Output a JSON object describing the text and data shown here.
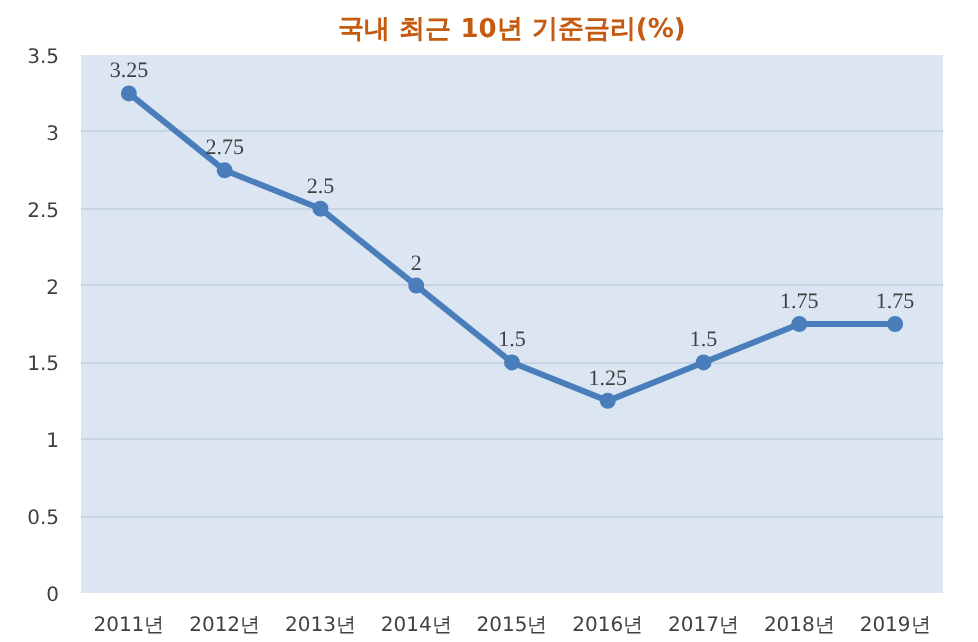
{
  "chart_data": {
    "type": "line",
    "title": "국내 최근 10년 기준금리(%)",
    "categories": [
      "2011년",
      "2012년",
      "2013년",
      "2014년",
      "2015년",
      "2016년",
      "2017년",
      "2018년",
      "2019년"
    ],
    "series": [
      {
        "color": "#4a7ebb",
        "values": [
          3.25,
          2.75,
          2.5,
          2,
          1.5,
          1.25,
          1.5,
          1.75,
          1.75
        ]
      }
    ],
    "ylim": [
      0,
      3.5
    ],
    "yticks": [
      0,
      0.5,
      1,
      1.5,
      2,
      2.5,
      3,
      3.5
    ],
    "grid": "y",
    "data_labels": true,
    "marker": "circle",
    "line_style": "solid"
  }
}
